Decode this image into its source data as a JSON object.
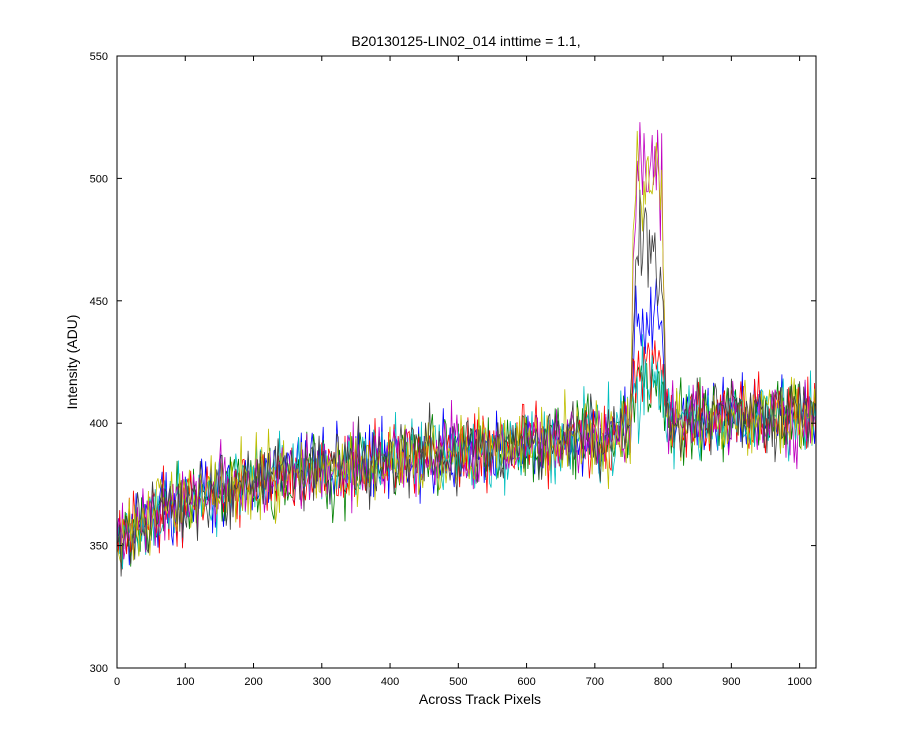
{
  "chart_data": {
    "type": "line",
    "title": "B20130125-LIN02_014 inttime = 1.1,",
    "xlabel": "Across Track Pixels",
    "ylabel": "Intensity (ADU)",
    "xlim": [
      0,
      1024
    ],
    "ylim": [
      300,
      550
    ],
    "x_ticks": [
      "0",
      "100",
      "200",
      "300",
      "400",
      "500",
      "600",
      "700",
      "800",
      "900",
      "1000"
    ],
    "y_ticks": [
      "300",
      "350",
      "400",
      "450",
      "500",
      "550"
    ],
    "grid": false,
    "legend": "none",
    "series_colors": [
      "#0000ff",
      "#008000",
      "#ff0000",
      "#00bfbf",
      "#bf00bf",
      "#bfbf00",
      "#404040"
    ],
    "baseline": {
      "x": [
        0,
        50,
        100,
        200,
        300,
        400,
        500,
        600,
        700,
        800,
        900,
        1000,
        1024
      ],
      "y": [
        350,
        362,
        368,
        376,
        381,
        385,
        388,
        391,
        394,
        400,
        402,
        403,
        403
      ]
    },
    "noise_amplitude": 17,
    "peak": {
      "x_range": [
        752,
        805
      ],
      "series_peaks": [
        {
          "color": "#0000ff",
          "peak_y": 455
        },
        {
          "color": "#008000",
          "peak_y": 420
        },
        {
          "color": "#ff0000",
          "peak_y": 425
        },
        {
          "color": "#00bfbf",
          "peak_y": 420
        },
        {
          "color": "#bf00bf",
          "peak_y": 520
        },
        {
          "color": "#bfbf00",
          "peak_y": 515
        },
        {
          "color": "#404040",
          "peak_y": 482
        }
      ]
    }
  }
}
